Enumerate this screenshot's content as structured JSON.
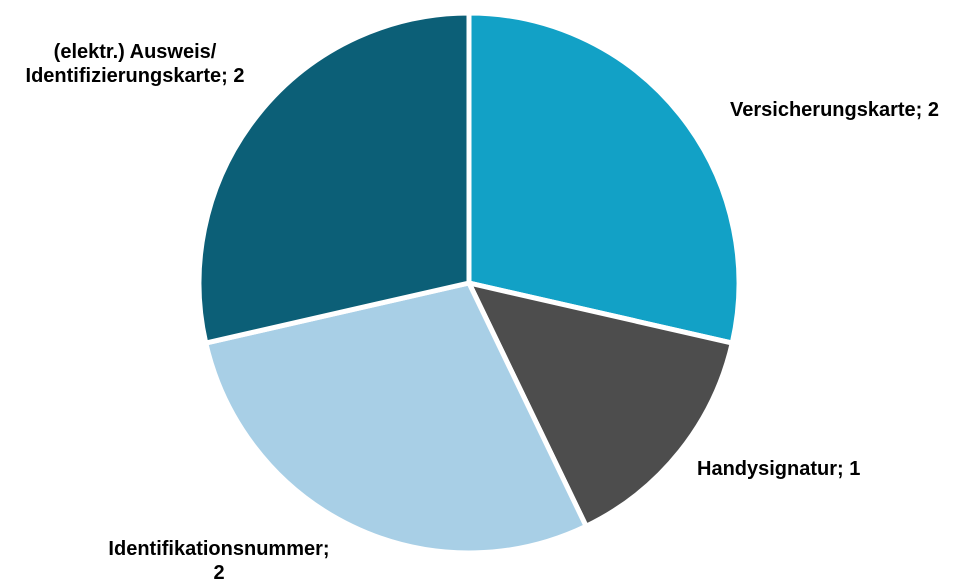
{
  "chart_data": {
    "type": "pie",
    "title": "",
    "start": "12 o'clock",
    "direction": "clockwise",
    "legend": "none",
    "separator": "; ",
    "slices": [
      {
        "label": "Versicherungskarte",
        "label_lines": [
          "Versicherungskarte; 2"
        ],
        "value": 2,
        "color": "#12a1c6"
      },
      {
        "label": "Handysignatur",
        "label_lines": [
          "Handysignatur; 1"
        ],
        "value": 1,
        "color": "#4d4d4d"
      },
      {
        "label": "Identifikationsnummer",
        "label_lines": [
          "Identifikationsnummer;",
          "2"
        ],
        "value": 2,
        "color": "#a8cfe6"
      },
      {
        "label": "(elektr.) Ausweis/ Identifizierungskarte",
        "label_lines": [
          "(elektr.) Ausweis/",
          "Identifizierungskarte; 2"
        ],
        "value": 2,
        "color": "#0c5f77"
      }
    ]
  }
}
